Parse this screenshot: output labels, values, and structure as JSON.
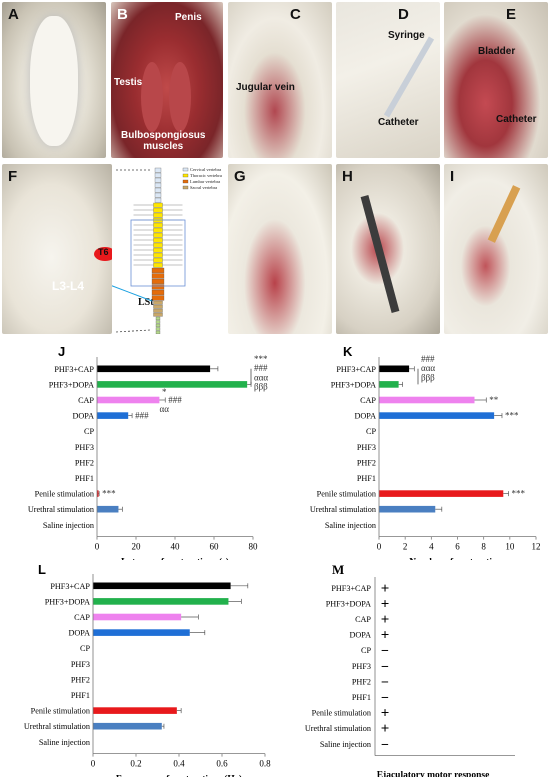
{
  "panels": {
    "A": {
      "label": "A"
    },
    "B": {
      "label": "B",
      "annotations": {
        "penis": "Penis",
        "testis": "Testis",
        "bulbo": "Bulbospongiosus\nmuscles"
      }
    },
    "C": {
      "label": "C",
      "annotations": {
        "jugular": "Jugular vein"
      }
    },
    "D": {
      "label": "D",
      "annotations": {
        "syringe": "Syringe",
        "catheter": "Catheter"
      }
    },
    "E": {
      "label": "E",
      "annotations": {
        "bladder": "Bladder",
        "catheter": "Catheter"
      }
    },
    "F": {
      "label": "F",
      "annotations": {
        "t6": "T6",
        "l3l4": "L3-L4",
        "lst": "LSt"
      },
      "legend": [
        "Cervical vertebra",
        "Thoracic vertebra",
        "Lumbar vertebra",
        "Sacral vertebra"
      ]
    },
    "G": {
      "label": "G"
    },
    "H": {
      "label": "H"
    },
    "I": {
      "label": "I"
    }
  },
  "chart_data": [
    {
      "panel": "J",
      "type": "bar",
      "orientation": "horizontal",
      "categories": [
        "PHF3+CAP",
        "PHF3+DOPA",
        "CAP",
        "DOPA",
        "CP",
        "PHF3",
        "PHF2",
        "PHF1",
        "Penile stimulation",
        "Urethral stimulation",
        "Saline injection"
      ],
      "values": [
        58,
        77,
        32,
        16,
        0,
        0,
        0,
        0,
        0.8,
        11,
        0
      ],
      "errors": [
        4,
        2,
        3,
        2,
        0,
        0,
        0,
        0,
        0.3,
        2,
        0
      ],
      "colors": [
        "#000000",
        "#22b14c",
        "#ee82ee",
        "#1f6fd6",
        "#888888",
        "#888888",
        "#888888",
        "#888888",
        "#e8191c",
        "#4a7fc1",
        "#888888"
      ],
      "xlabel": "Latency of contractions (s)",
      "xlim": [
        0,
        80
      ],
      "xticks": [
        0,
        20,
        40,
        60,
        80
      ],
      "annotations": [
        {
          "index": 2,
          "text": "*",
          "pos": "above"
        },
        {
          "index": 2,
          "text": "###",
          "pos": "right"
        },
        {
          "index": 2,
          "text": "αα",
          "pos": "below"
        },
        {
          "index": 3,
          "text": "###",
          "pos": "right"
        },
        {
          "index": 8,
          "text": "***",
          "pos": "right"
        }
      ],
      "bracket_text": [
        "***",
        "###",
        "ααα",
        "βββ"
      ]
    },
    {
      "panel": "K",
      "type": "bar",
      "orientation": "horizontal",
      "categories": [
        "PHF3+CAP",
        "PHF3+DOPA",
        "CAP",
        "DOPA",
        "CP",
        "PHF3",
        "PHF2",
        "PHF1",
        "Penile stimulation",
        "Urethral stimulation",
        "Saline injection"
      ],
      "values": [
        2.3,
        1.5,
        7.3,
        8.8,
        0,
        0,
        0,
        0,
        9.5,
        4.3,
        0
      ],
      "errors": [
        0.4,
        0.3,
        0.9,
        0.6,
        0,
        0,
        0,
        0,
        0.4,
        0.5,
        0
      ],
      "colors": [
        "#000000",
        "#22b14c",
        "#ee82ee",
        "#1f6fd6",
        "#888888",
        "#888888",
        "#888888",
        "#888888",
        "#e8191c",
        "#4a7fc1",
        "#888888"
      ],
      "xlabel": "Number of contractions",
      "xlim": [
        0,
        12
      ],
      "xticks": [
        0,
        2,
        4,
        6,
        8,
        10,
        12
      ],
      "annotations": [
        {
          "index": 2,
          "text": "**",
          "pos": "right"
        },
        {
          "index": 3,
          "text": "***",
          "pos": "right"
        },
        {
          "index": 8,
          "text": "***",
          "pos": "right"
        }
      ],
      "bracket_text": [
        "###",
        "ααα",
        "βββ"
      ]
    },
    {
      "panel": "L",
      "type": "bar",
      "orientation": "horizontal",
      "categories": [
        "PHF3+CAP",
        "PHF3+DOPA",
        "CAP",
        "DOPA",
        "CP",
        "PHF3",
        "PHF2",
        "PHF1",
        "Penile stimulation",
        "Urethral stimulation",
        "Saline injection"
      ],
      "values": [
        0.64,
        0.63,
        0.41,
        0.45,
        0,
        0,
        0,
        0,
        0.39,
        0.32,
        0
      ],
      "errors": [
        0.08,
        0.06,
        0.08,
        0.07,
        0,
        0,
        0,
        0,
        0.02,
        0.01,
        0
      ],
      "colors": [
        "#000000",
        "#22b14c",
        "#ee82ee",
        "#1f6fd6",
        "#888888",
        "#888888",
        "#888888",
        "#888888",
        "#e8191c",
        "#4a7fc1",
        "#888888"
      ],
      "xlabel": "Frequency of contractions (Hz)",
      "xlim": [
        0,
        0.8
      ],
      "xticks": [
        0,
        0.2,
        0.4,
        0.6,
        0.8
      ]
    },
    {
      "panel": "M",
      "type": "table",
      "categories": [
        "PHF3+CAP",
        "PHF3+DOPA",
        "CAP",
        "DOPA",
        "CP",
        "PHF3",
        "PHF2",
        "PHF1",
        "Penile stimulation",
        "Urethral stimulation",
        "Saline injection"
      ],
      "values": [
        "+",
        "+",
        "+",
        "+",
        "−",
        "−",
        "−",
        "−",
        "+",
        "+",
        "−"
      ],
      "xlabel": "Ejaculatory motor response"
    }
  ],
  "chart_labels": [
    "J",
    "K",
    "L",
    "M"
  ]
}
